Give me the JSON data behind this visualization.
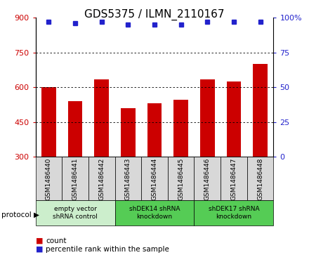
{
  "title": "GDS5375 / ILMN_2110167",
  "samples": [
    "GSM1486440",
    "GSM1486441",
    "GSM1486442",
    "GSM1486443",
    "GSM1486444",
    "GSM1486445",
    "GSM1486446",
    "GSM1486447",
    "GSM1486448"
  ],
  "counts": [
    600,
    540,
    635,
    510,
    530,
    545,
    635,
    625,
    700
  ],
  "percentiles": [
    97,
    96,
    97,
    95,
    95,
    95,
    97,
    97,
    97
  ],
  "ylim_left": [
    300,
    900
  ],
  "ylim_right": [
    0,
    100
  ],
  "yticks_left": [
    300,
    450,
    600,
    750,
    900
  ],
  "yticks_right": [
    0,
    25,
    50,
    75,
    100
  ],
  "bar_color": "#cc0000",
  "dot_color": "#2222cc",
  "bar_width": 0.55,
  "groups": [
    {
      "label": "empty vector\nshRNA control",
      "start": 0,
      "end": 3,
      "color": "#cceecc"
    },
    {
      "label": "shDEK14 shRNA\nknockdown",
      "start": 3,
      "end": 6,
      "color": "#55cc55"
    },
    {
      "label": "shDEK17 shRNA\nknockdown",
      "start": 6,
      "end": 9,
      "color": "#55cc55"
    }
  ],
  "sample_box_color": "#d8d8d8",
  "legend_count_color": "#cc0000",
  "legend_dot_color": "#2222cc",
  "title_fontsize": 11,
  "tick_fontsize": 8,
  "label_fontsize": 6.5
}
